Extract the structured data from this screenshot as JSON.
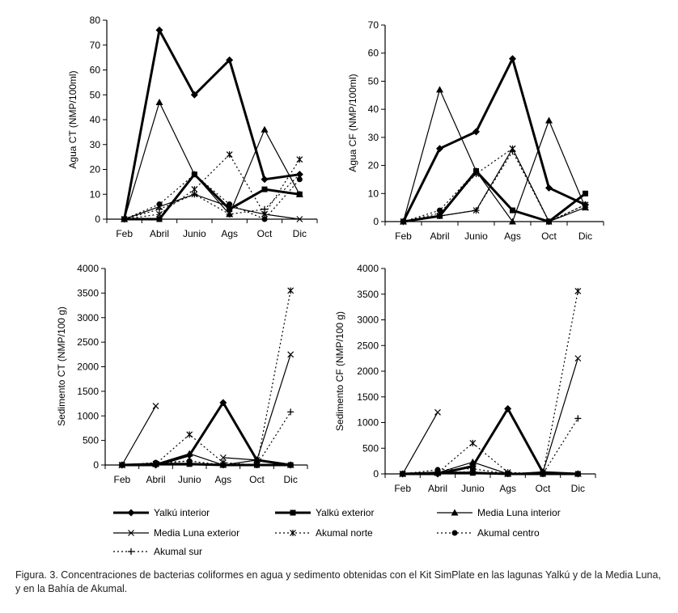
{
  "colors": {
    "ink": "#000000"
  },
  "series_styles": [
    {
      "name": "Yalkú interior",
      "marker": "diamond",
      "stroke_width": 3,
      "dash": ""
    },
    {
      "name": "Yalkú exterior",
      "marker": "square",
      "stroke_width": 3,
      "dash": ""
    },
    {
      "name": "Media Luna interior",
      "marker": "triangle",
      "stroke_width": 1.2,
      "dash": ""
    },
    {
      "name": "Media Luna exterior",
      "marker": "x",
      "stroke_width": 1.2,
      "dash": ""
    },
    {
      "name": "Akumal norte",
      "marker": "star",
      "stroke_width": 1.2,
      "dash": "2,3"
    },
    {
      "name": "Akumal centro",
      "marker": "circle",
      "stroke_width": 1.2,
      "dash": "2,3"
    },
    {
      "name": "Akumal sur",
      "marker": "plus",
      "stroke_width": 1.2,
      "dash": "2,3"
    }
  ],
  "legend": [
    "Yalkú interior",
    "Yalkú exterior",
    "Media Luna interior",
    "Media Luna exterior",
    "Akumal norte",
    "Akumal centro",
    "Akumal sur"
  ],
  "chart_data": [
    {
      "type": "line",
      "ylabel": "Agua CT (NMP/100ml)",
      "categories": [
        "Feb",
        "Abril",
        "Junio",
        "Ags",
        "Oct",
        "Dic"
      ],
      "ylim": [
        0,
        80
      ],
      "yticks": [
        0,
        10,
        20,
        30,
        40,
        50,
        60,
        70,
        80
      ],
      "series": [
        {
          "name": "Yalkú interior",
          "values": [
            0,
            76,
            50,
            64,
            16,
            18
          ]
        },
        {
          "name": "Yalkú exterior",
          "values": [
            0,
            0,
            18,
            4,
            12,
            10
          ]
        },
        {
          "name": "Media Luna interior",
          "values": [
            0,
            47,
            18,
            2,
            36,
            10
          ]
        },
        {
          "name": "Media Luna exterior",
          "values": [
            0,
            5,
            10,
            5,
            2,
            0
          ]
        },
        {
          "name": "Akumal norte",
          "values": [
            0,
            2,
            12,
            26,
            2,
            24
          ]
        },
        {
          "name": "Akumal centro",
          "values": [
            0,
            6,
            18,
            6,
            0,
            16
          ]
        },
        {
          "name": "Akumal sur",
          "values": [
            0,
            4,
            10,
            2,
            4,
            18
          ]
        }
      ]
    },
    {
      "type": "line",
      "ylabel": "Agua CF (NMP/100ml)",
      "categories": [
        "Feb",
        "Abril",
        "Junio",
        "Ags",
        "Oct",
        "Dic"
      ],
      "ylim": [
        0,
        70
      ],
      "yticks": [
        0,
        10,
        20,
        30,
        40,
        50,
        60,
        70
      ],
      "series": [
        {
          "name": "Yalkú interior",
          "values": [
            0,
            26,
            32,
            58,
            12,
            6
          ]
        },
        {
          "name": "Yalkú exterior",
          "values": [
            0,
            2,
            18,
            4,
            0,
            10
          ]
        },
        {
          "name": "Media Luna interior",
          "values": [
            0,
            47,
            18,
            0,
            36,
            5
          ]
        },
        {
          "name": "Media Luna exterior",
          "values": [
            0,
            2,
            4,
            26,
            0,
            5
          ]
        },
        {
          "name": "Akumal norte",
          "values": [
            0,
            3,
            17,
            26,
            0,
            6
          ]
        },
        {
          "name": "Akumal centro",
          "values": [
            0,
            4,
            18,
            4,
            0,
            10
          ]
        },
        {
          "name": "Akumal sur",
          "values": [
            0,
            2,
            4,
            25,
            0,
            6
          ]
        }
      ]
    },
    {
      "type": "line",
      "ylabel": "Sedimento CT (NMP/100 g)",
      "categories": [
        "Feb",
        "Abril",
        "Junio",
        "Ags",
        "Oct",
        "Dic"
      ],
      "ylim": [
        0,
        4000
      ],
      "yticks": [
        0,
        500,
        1000,
        1500,
        2000,
        2500,
        3000,
        3500,
        4000
      ],
      "series": [
        {
          "name": "Yalkú interior",
          "values": [
            0,
            0,
            200,
            1270,
            100,
            0
          ]
        },
        {
          "name": "Yalkú exterior",
          "values": [
            0,
            20,
            20,
            0,
            0,
            0
          ]
        },
        {
          "name": "Media Luna interior",
          "values": [
            0,
            20,
            230,
            0,
            100,
            0
          ]
        },
        {
          "name": "Media Luna exterior",
          "values": [
            0,
            1200,
            null,
            150,
            100,
            2250
          ]
        },
        {
          "name": "Akumal norte",
          "values": [
            0,
            20,
            620,
            50,
            0,
            3550
          ]
        },
        {
          "name": "Akumal centro",
          "values": [
            0,
            50,
            80,
            0,
            0,
            0
          ]
        },
        {
          "name": "Akumal sur",
          "values": [
            0,
            30,
            80,
            0,
            0,
            1080
          ]
        }
      ]
    },
    {
      "type": "line",
      "ylabel": "Sedimento CF (NMP/100 g)",
      "categories": [
        "Feb",
        "Abril",
        "Junio",
        "Ags",
        "Oct",
        "Dic"
      ],
      "ylim": [
        0,
        4000
      ],
      "yticks": [
        0,
        500,
        1000,
        1500,
        2000,
        2500,
        3000,
        3500,
        4000
      ],
      "series": [
        {
          "name": "Yalkú interior",
          "values": [
            0,
            0,
            150,
            1270,
            30,
            0
          ]
        },
        {
          "name": "Yalkú exterior",
          "values": [
            0,
            20,
            20,
            0,
            0,
            0
          ]
        },
        {
          "name": "Media Luna interior",
          "values": [
            0,
            20,
            230,
            0,
            40,
            0
          ]
        },
        {
          "name": "Media Luna exterior",
          "values": [
            0,
            1200,
            null,
            0,
            30,
            2250
          ]
        },
        {
          "name": "Akumal norte",
          "values": [
            0,
            20,
            600,
            30,
            0,
            3560
          ]
        },
        {
          "name": "Akumal centro",
          "values": [
            0,
            80,
            100,
            0,
            0,
            0
          ]
        },
        {
          "name": "Akumal sur",
          "values": [
            0,
            30,
            40,
            0,
            0,
            1080
          ]
        }
      ]
    }
  ],
  "caption": "Figura. 3. Concentraciones de bacterias coliformes en agua y sedimento obtenidas con el Kit SimPlate en las lagunas Yalkú y de la Media Luna, y en la Bahía de Akumal."
}
